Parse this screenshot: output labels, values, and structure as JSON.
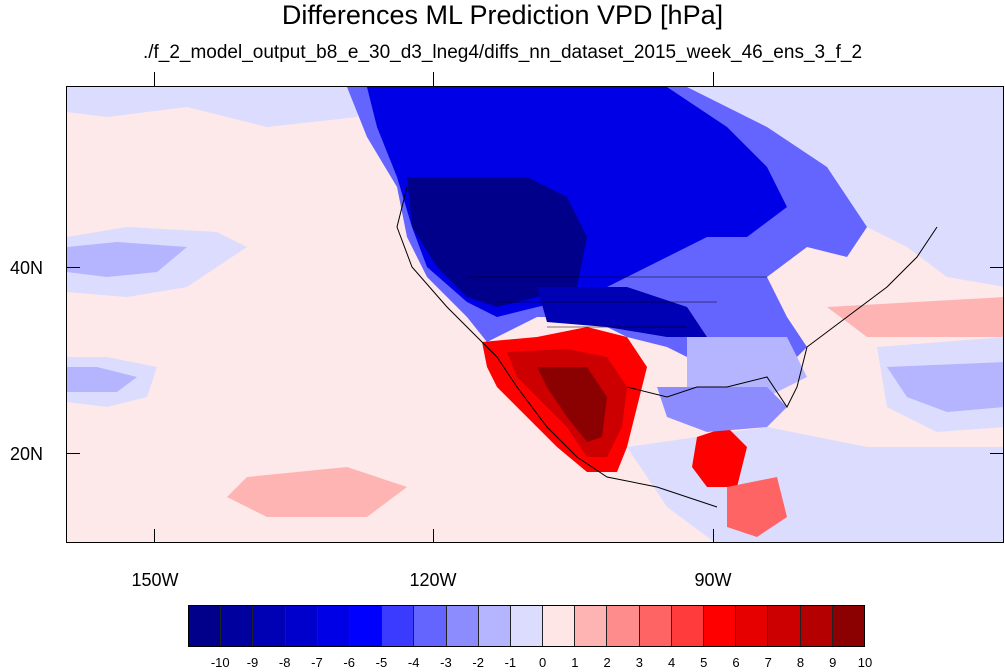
{
  "title": "Differences ML Prediction VPD [hPa]",
  "subtitle": "./f_2_model_output_b8_e_30_d3_lneg4/diffs_nn_dataset_2015_week_46_ens_3_f_2",
  "lat_labels": [
    "40N",
    "20N"
  ],
  "lon_labels": [
    "150W",
    "120W",
    "90W"
  ],
  "colorbar": {
    "labels": [
      "-10",
      "-9",
      "-8",
      "-7",
      "-6",
      "-5",
      "-4",
      "-3",
      "-2",
      "-1",
      "0",
      "1",
      "2",
      "3",
      "4",
      "5",
      "6",
      "7",
      "8",
      "9",
      "10"
    ],
    "colors": [
      "#00008b",
      "#00009e",
      "#0000b4",
      "#0000cc",
      "#0000e6",
      "#0000ff",
      "#3b3bff",
      "#6464ff",
      "#8c8cff",
      "#b4b4ff",
      "#dcdcff",
      "#ffe6e6",
      "#ffb4b4",
      "#ff8c8c",
      "#ff6464",
      "#ff3b3b",
      "#ff0000",
      "#e60000",
      "#cc0000",
      "#b40000",
      "#8b0000"
    ]
  },
  "map_colors": {
    "ocean_neutral": "#fde9e9",
    "ocean_light_blue": "#dcdcff",
    "ocean_mid_blue": "#b4b4ff",
    "dark_blue": "#00008b",
    "mid_blue": "#0000e6",
    "red": "#ff0000",
    "dark_red": "#8b0000",
    "light_red": "#ffb4b4"
  }
}
